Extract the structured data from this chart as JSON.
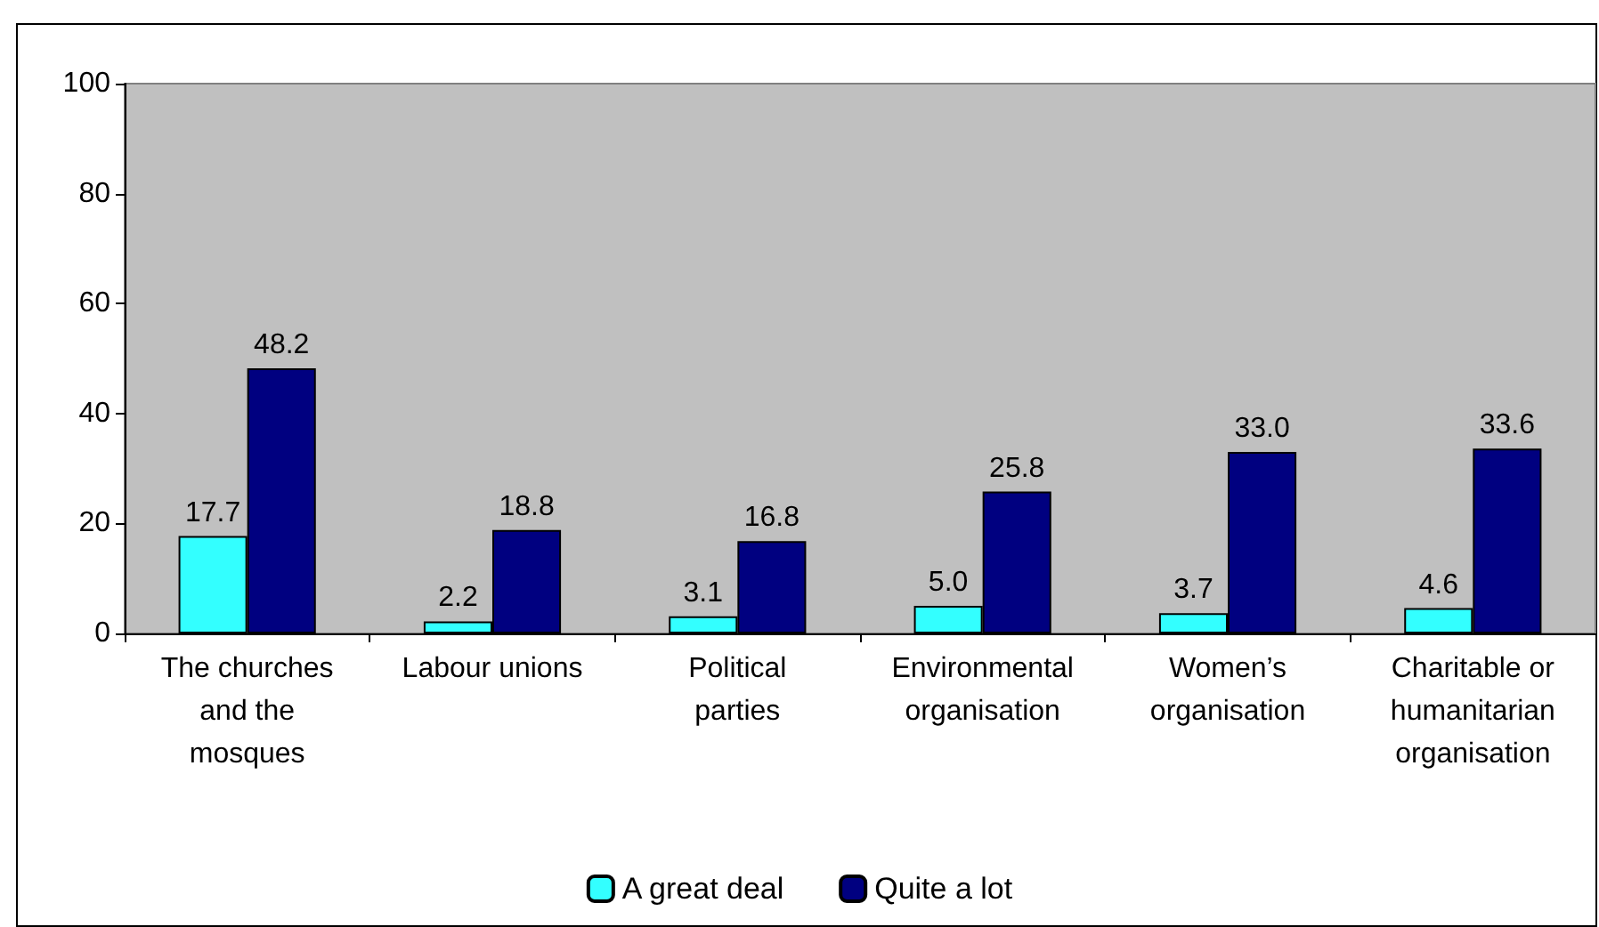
{
  "chart_data": {
    "type": "bar",
    "categories": [
      "The churches\nand the\nmosques",
      "Labour unions",
      "Political\nparties",
      "Environmental\norganisation",
      "Women’s\norganisation",
      "Charitable or\nhumanitarian\norganisation"
    ],
    "series": [
      {
        "name": "A great deal",
        "color": "#33ffff",
        "values": [
          17.7,
          2.2,
          3.1,
          5.0,
          3.7,
          4.6
        ],
        "value_labels": [
          "17.7",
          "2.2",
          "3.1",
          "5.0",
          "3.7",
          "4.6"
        ]
      },
      {
        "name": "Quite a lot",
        "color": "#000080",
        "values": [
          48.2,
          18.8,
          16.8,
          25.8,
          33.0,
          33.6
        ],
        "value_labels": [
          "48.2",
          "18.8",
          "16.8",
          "25.8",
          "33.0",
          "33.6"
        ]
      }
    ],
    "ylim": [
      0,
      100
    ],
    "yticks": [
      0,
      20,
      40,
      60,
      80,
      100
    ],
    "grid": false,
    "legend": "bottom"
  }
}
